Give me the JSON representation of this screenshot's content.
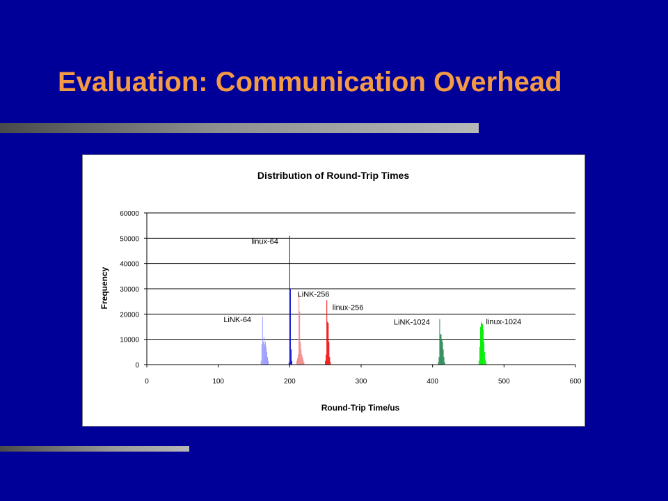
{
  "slide": {
    "title": "Evaluation: Communication Overhead"
  },
  "colors": {
    "background": "#000099",
    "title": "#F39A45"
  },
  "chart_data": {
    "type": "bar",
    "title": "Distribution of Round-Trip Times",
    "xlabel": "Round-Trip Time/us",
    "ylabel": "Frequency",
    "xlim": [
      0,
      600
    ],
    "ylim": [
      0,
      60000
    ],
    "xticks": [
      "0",
      "100",
      "200",
      "300",
      "400",
      "500",
      "600"
    ],
    "yticks": [
      "0",
      "10000",
      "20000",
      "30000",
      "40000",
      "50000",
      "60000"
    ],
    "grid": "horizontal",
    "series": [
      {
        "name": "LiNK-64",
        "color": "#9999FF",
        "x": [
          160,
          161,
          162,
          163,
          164,
          165,
          166,
          167,
          168,
          169,
          170
        ],
        "values": [
          1500,
          8000,
          19000,
          9000,
          11000,
          8000,
          9000,
          7000,
          5000,
          3000,
          1500
        ]
      },
      {
        "name": "linux-64",
        "color": "#0000CC",
        "x": [
          199,
          200,
          201,
          202,
          203
        ],
        "values": [
          800,
          51000,
          30000,
          6000,
          1500
        ]
      },
      {
        "name": "LiNK-256",
        "color": "#F08080",
        "x": [
          210,
          211,
          212,
          213,
          214,
          215,
          216,
          217,
          218,
          219,
          220
        ],
        "values": [
          1500,
          2500,
          4000,
          28000,
          21000,
          9000,
          6000,
          4000,
          3000,
          2000,
          1000
        ]
      },
      {
        "name": "linux-256",
        "color": "#EE0000",
        "x": [
          250,
          251,
          252,
          253,
          254,
          255,
          256,
          257
        ],
        "values": [
          1500,
          4000,
          25500,
          17000,
          16500,
          9000,
          3000,
          1000
        ]
      },
      {
        "name": "LiNK-1024",
        "color": "#2E8B57",
        "x": [
          408,
          409,
          410,
          411,
          412,
          413,
          414,
          415,
          416,
          417
        ],
        "values": [
          1000,
          3000,
          18000,
          12000,
          12000,
          10000,
          9000,
          6000,
          3000,
          1000
        ]
      },
      {
        "name": "linux-1024",
        "color": "#00EE00",
        "x": [
          465,
          466,
          467,
          468,
          469,
          470,
          471,
          472,
          473,
          474,
          475
        ],
        "values": [
          1500,
          7000,
          15000,
          16500,
          17000,
          16000,
          14000,
          9000,
          5000,
          2000,
          800
        ]
      }
    ],
    "annotations": [
      {
        "text": "LiNK-64",
        "series": "LiNK-64"
      },
      {
        "text": "linux-64",
        "series": "linux-64"
      },
      {
        "text": "LiNK-256",
        "series": "LiNK-256"
      },
      {
        "text": "linux-256",
        "series": "linux-256"
      },
      {
        "text": "LiNK-1024",
        "series": "LiNK-1024"
      },
      {
        "text": "linux-1024",
        "series": "linux-1024"
      }
    ]
  }
}
